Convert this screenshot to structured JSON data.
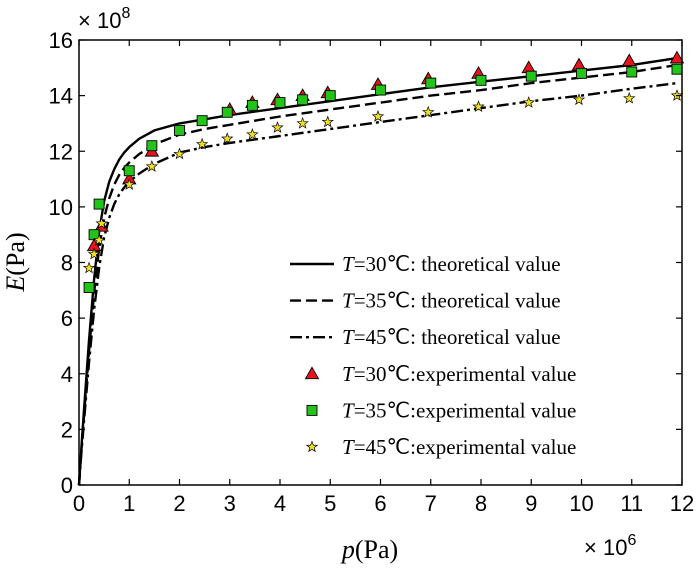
{
  "chart_data": {
    "type": "line",
    "xlabel": {
      "symbol": "p",
      "unit": "(Pa)"
    },
    "ylabel": {
      "symbol": "E",
      "unit": "(Pa)"
    },
    "x_multiplier": {
      "base": "× 10",
      "exp": "6"
    },
    "y_multiplier": {
      "base": "× 10",
      "exp": "8"
    },
    "xlim": [
      0,
      12
    ],
    "ylim": [
      0,
      16
    ],
    "x_ticks": [
      0,
      1,
      2,
      3,
      4,
      5,
      6,
      7,
      8,
      9,
      10,
      11,
      12
    ],
    "y_ticks": [
      0,
      2,
      4,
      6,
      8,
      10,
      12,
      14,
      16
    ],
    "legend_position": "bottom-right",
    "series": [
      {
        "kind": "theoretical",
        "temp": "30℃",
        "suffix": ": theoretical value",
        "style": "solid",
        "x": [
          0,
          0.05,
          0.1,
          0.2,
          0.3,
          0.4,
          0.5,
          0.6,
          0.7,
          0.8,
          0.9,
          1.0,
          1.2,
          1.5,
          2.0,
          2.5,
          3,
          4,
          5,
          6,
          7,
          8,
          9,
          10,
          11,
          11.9
        ],
        "y": [
          0,
          1.4,
          2.7,
          5.2,
          7.4,
          9.1,
          10.2,
          10.9,
          11.35,
          11.7,
          11.95,
          12.15,
          12.45,
          12.75,
          13.0,
          13.15,
          13.3,
          13.55,
          13.8,
          14.05,
          14.3,
          14.5,
          14.7,
          14.9,
          15.1,
          15.35
        ]
      },
      {
        "kind": "theoretical",
        "temp": "35℃",
        "suffix": ": theoretical value",
        "style": "dashed",
        "x": [
          0,
          0.05,
          0.1,
          0.2,
          0.3,
          0.4,
          0.5,
          0.6,
          0.7,
          0.8,
          0.9,
          1.0,
          1.2,
          1.5,
          2.0,
          2.5,
          3,
          4,
          5,
          6,
          7,
          8,
          9,
          10,
          11,
          11.9
        ],
        "y": [
          0,
          1.3,
          2.5,
          4.8,
          6.9,
          8.5,
          9.6,
          10.3,
          10.8,
          11.15,
          11.4,
          11.6,
          11.9,
          12.25,
          12.6,
          12.8,
          12.95,
          13.25,
          13.5,
          13.75,
          14.0,
          14.2,
          14.45,
          14.65,
          14.85,
          15.1
        ]
      },
      {
        "kind": "theoretical",
        "temp": "45℃",
        "suffix": ": theoretical value",
        "style": "dashdot",
        "x": [
          0,
          0.05,
          0.1,
          0.2,
          0.3,
          0.4,
          0.5,
          0.6,
          0.7,
          0.8,
          0.9,
          1.0,
          1.2,
          1.5,
          2.0,
          2.5,
          3,
          4,
          5,
          6,
          7,
          8,
          9,
          10,
          11,
          11.9
        ],
        "y": [
          0,
          1.2,
          2.3,
          4.4,
          6.3,
          7.8,
          8.9,
          9.6,
          10.1,
          10.45,
          10.7,
          10.9,
          11.2,
          11.55,
          11.95,
          12.15,
          12.3,
          12.55,
          12.8,
          13.05,
          13.3,
          13.55,
          13.8,
          14.0,
          14.25,
          14.45
        ]
      },
      {
        "kind": "experimental",
        "temp": "30℃",
        "suffix": ":experimental value",
        "marker": "triangle",
        "color": "#e8141c",
        "x": [
          0.3,
          0.45,
          1.0,
          1.45,
          3.0,
          3.45,
          3.95,
          4.45,
          4.95,
          5.95,
          6.95,
          7.95,
          8.95,
          9.95,
          10.95,
          11.9
        ],
        "y": [
          8.6,
          9.3,
          11.0,
          12.0,
          13.5,
          13.75,
          13.85,
          14.0,
          14.1,
          14.4,
          14.6,
          14.8,
          15.0,
          15.1,
          15.25,
          15.35
        ]
      },
      {
        "kind": "experimental",
        "temp": "35℃",
        "suffix": ":experimental value",
        "marker": "square",
        "color": "#22c41a",
        "x": [
          0.2,
          0.3,
          0.4,
          1.0,
          1.45,
          2.0,
          2.45,
          2.95,
          3.45,
          4.0,
          4.45,
          5.0,
          6.0,
          7.0,
          8.0,
          9.0,
          10.0,
          11.0,
          11.9
        ],
        "y": [
          7.1,
          9.0,
          10.1,
          11.3,
          12.2,
          12.75,
          13.1,
          13.4,
          13.65,
          13.75,
          13.85,
          14.0,
          14.2,
          14.45,
          14.55,
          14.7,
          14.8,
          14.85,
          14.95
        ]
      },
      {
        "kind": "experimental",
        "temp": "45℃",
        "suffix": ":experimental value",
        "marker": "star",
        "color": "#f0e020",
        "x": [
          0.2,
          0.3,
          0.4,
          0.45,
          1.0,
          1.45,
          2.0,
          2.45,
          2.95,
          3.45,
          3.95,
          4.45,
          4.95,
          5.95,
          6.95,
          7.95,
          8.95,
          9.95,
          10.95,
          11.9
        ],
        "y": [
          7.8,
          8.3,
          8.8,
          9.4,
          10.8,
          11.45,
          11.9,
          12.25,
          12.45,
          12.6,
          12.85,
          13.0,
          13.05,
          13.25,
          13.4,
          13.6,
          13.75,
          13.85,
          13.9,
          14.0
        ]
      }
    ]
  }
}
